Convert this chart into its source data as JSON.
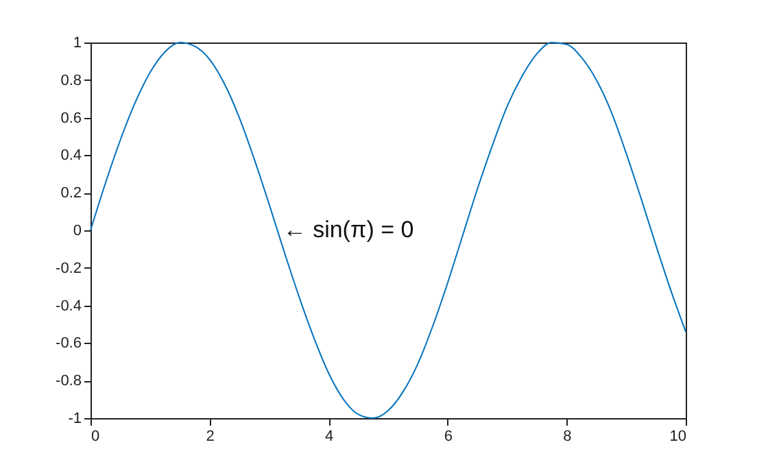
{
  "chart_data": {
    "type": "line",
    "x": [
      0,
      0.25,
      0.5,
      0.75,
      1,
      1.25,
      1.5,
      1.75,
      2,
      2.25,
      2.5,
      2.75,
      3,
      3.25,
      3.5,
      3.75,
      4,
      4.25,
      4.5,
      4.75,
      5,
      5.25,
      5.5,
      5.75,
      6,
      6.25,
      6.5,
      6.75,
      7,
      7.25,
      7.5,
      7.75,
      8,
      8.25,
      8.5,
      8.75,
      9,
      9.25,
      9.5,
      9.75,
      10
    ],
    "series": [
      {
        "color": "#0072bd",
        "values": [
          0,
          0.25,
          0.48,
          0.68,
          0.84,
          0.95,
          1.0,
          0.98,
          0.91,
          0.78,
          0.6,
          0.38,
          0.14,
          -0.11,
          -0.35,
          -0.57,
          -0.76,
          -0.9,
          -0.98,
          -1.0,
          -0.96,
          -0.86,
          -0.71,
          -0.51,
          -0.28,
          -0.03,
          0.22,
          0.45,
          0.66,
          0.82,
          0.94,
          1.0,
          0.99,
          0.92,
          0.8,
          0.63,
          0.41,
          0.17,
          -0.08,
          -0.32,
          -0.54
        ]
      }
    ],
    "xlim": [
      0,
      10
    ],
    "ylim": [
      -1,
      1
    ],
    "xticks": [
      0,
      2,
      4,
      6,
      8,
      10
    ],
    "yticks": [
      -1,
      -0.8,
      -0.6,
      -0.4,
      -0.2,
      0,
      0.2,
      0.4,
      0.6,
      0.8,
      1
    ],
    "grid": false,
    "annotations": [
      {
        "text": "← sin(π)  =  0",
        "x": 3.14159,
        "y": 0
      }
    ]
  }
}
